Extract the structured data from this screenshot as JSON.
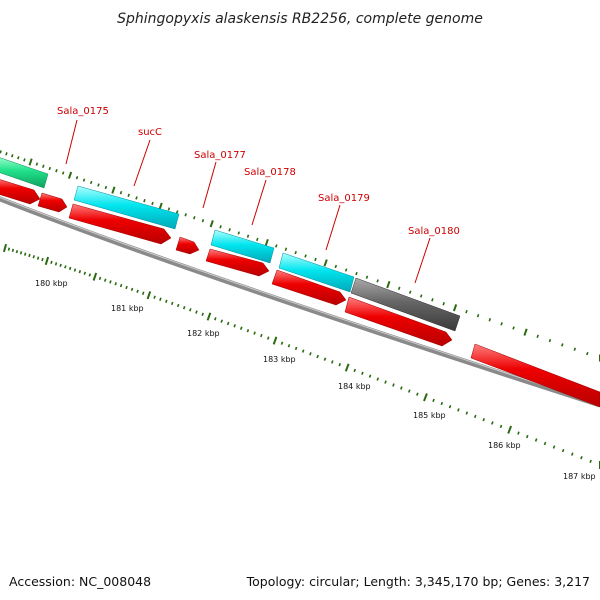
{
  "title": "Sphingopyxis alaskensis RB2256, complete genome",
  "accession": "Accession: NC_008048",
  "topology": "Topology: circular; Length: 3,345,170 bp; Genes: 3,217",
  "colors": {
    "cds": "#ee0000",
    "gene_cyan": "#00e5ee",
    "gene_green": "#21e38b",
    "gene_gray": "#666666",
    "label": "#cc0000",
    "tick": "#2a6a10",
    "backbone": "#888888"
  },
  "gene_labels": [
    "Sala_0175",
    "sucC",
    "Sala_0177",
    "Sala_0178",
    "Sala_0179",
    "Sala_0180"
  ],
  "kbp_labels": [
    "180 kbp",
    "181 kbp",
    "182 kbp",
    "183 kbp",
    "184 kbp",
    "185 kbp",
    "186 kbp",
    "187 kbp"
  ]
}
